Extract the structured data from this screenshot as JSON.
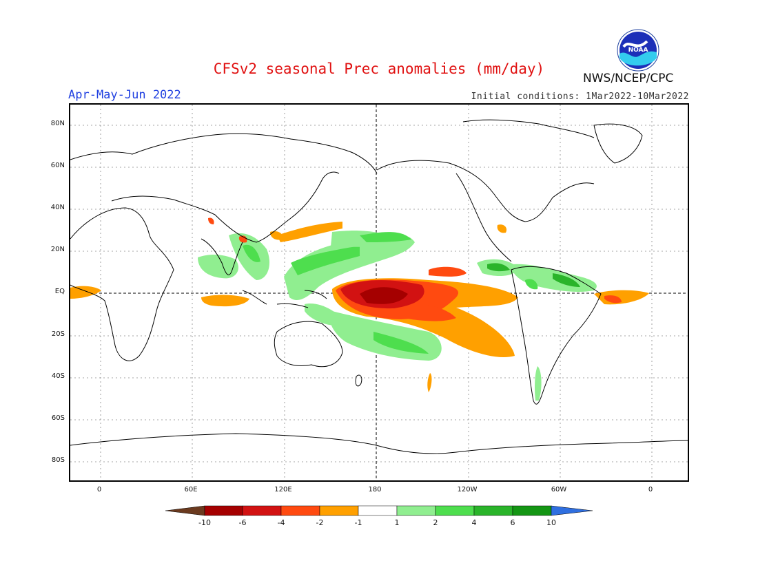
{
  "header": {
    "title": "CFSv2 seasonal Prec anomalies (mm/day)",
    "period": "Apr-May-Jun 2022",
    "initial_conditions": "Initial conditions: 1Mar2022-10Mar2022",
    "agency": "NWS/NCEP/CPC",
    "logo_text": "NOAA"
  },
  "map": {
    "lat_labels": [
      "80N",
      "60N",
      "40N",
      "20N",
      "EQ",
      "20S",
      "40S",
      "60S",
      "80S"
    ],
    "lon_labels": [
      "0",
      "60E",
      "120E",
      "180",
      "120W",
      "60W",
      "0"
    ],
    "grid": true,
    "center_longitude": "180"
  },
  "legend": {
    "labels": [
      "-10",
      "-6",
      "-4",
      "-2",
      "-1",
      "1",
      "2",
      "4",
      "6",
      "10"
    ],
    "colors": [
      "#6b3a1f",
      "#a50000",
      "#d21212",
      "#ff4a10",
      "#ffa000",
      "#ffffff",
      "#90ee90",
      "#4ede4e",
      "#2ab42a",
      "#149614",
      "#2f6fe0"
    ]
  }
}
